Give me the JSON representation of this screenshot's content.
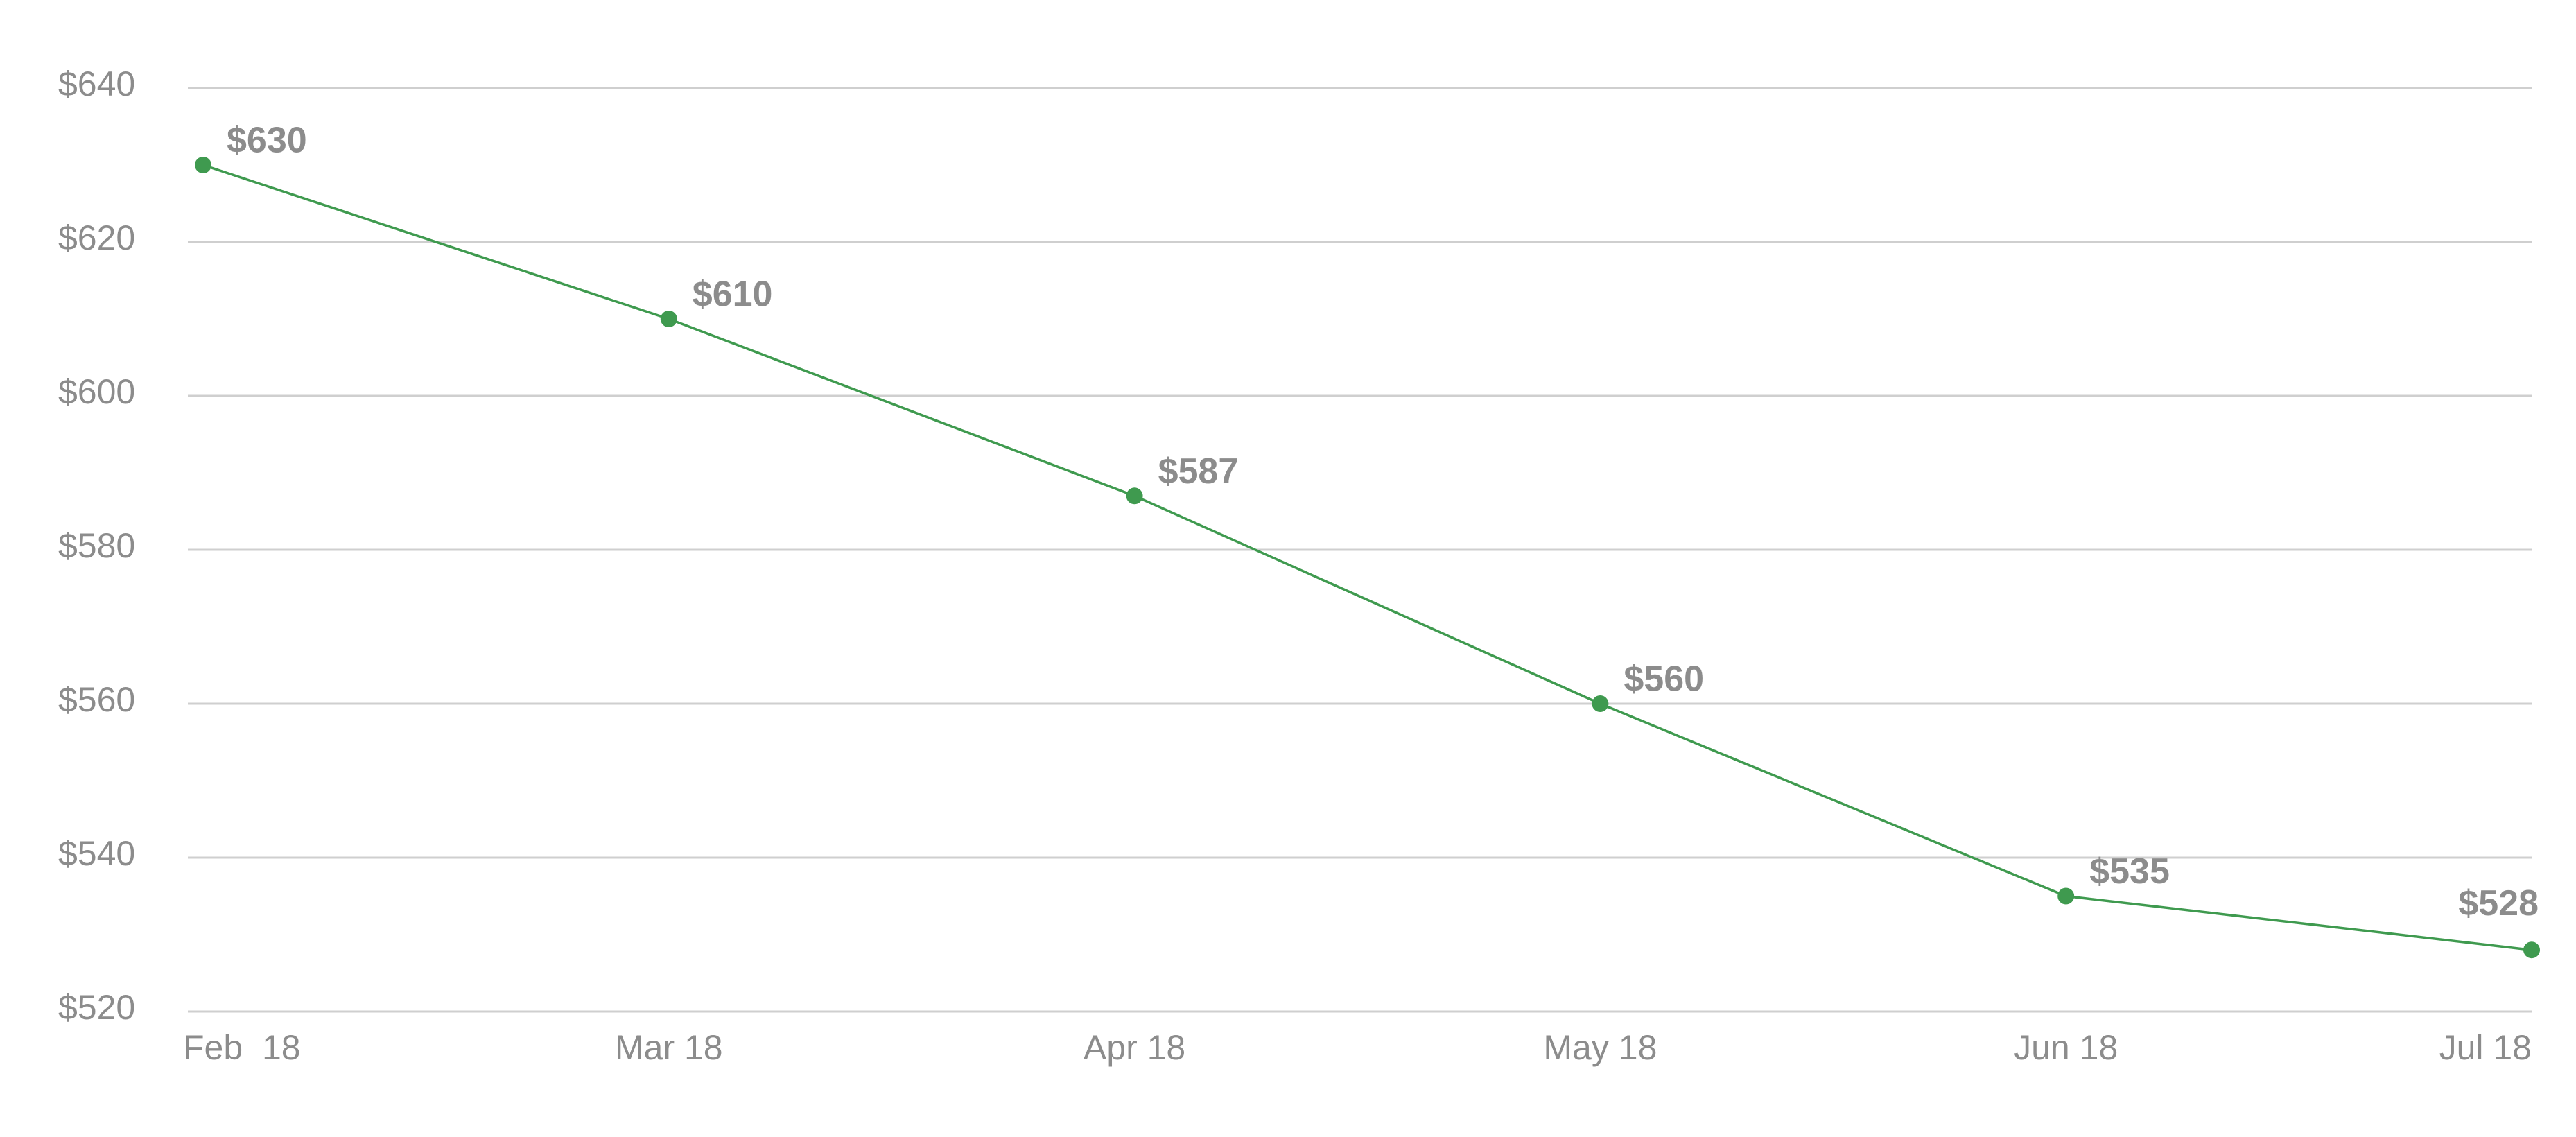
{
  "chart_data": {
    "type": "line",
    "categories": [
      "Feb  18",
      "Mar 18",
      "Apr 18",
      "May 18",
      "Jun 18",
      "Jul 18"
    ],
    "series": [
      {
        "color": "#3f9a4f",
        "values": [
          630,
          610,
          587,
          560,
          535,
          528
        ],
        "value_labels": [
          "$630",
          "$610",
          "$587",
          "$560",
          "$535",
          "$528"
        ]
      }
    ],
    "ylim": [
      520,
      640
    ],
    "yticks": [
      {
        "value": 520,
        "label": "$520"
      },
      {
        "value": 540,
        "label": "$540"
      },
      {
        "value": 560,
        "label": "$560"
      },
      {
        "value": 580,
        "label": "$580"
      },
      {
        "value": 600,
        "label": "$600"
      },
      {
        "value": 620,
        "label": "$620"
      },
      {
        "value": 640,
        "label": "$640"
      }
    ],
    "grid": true
  }
}
